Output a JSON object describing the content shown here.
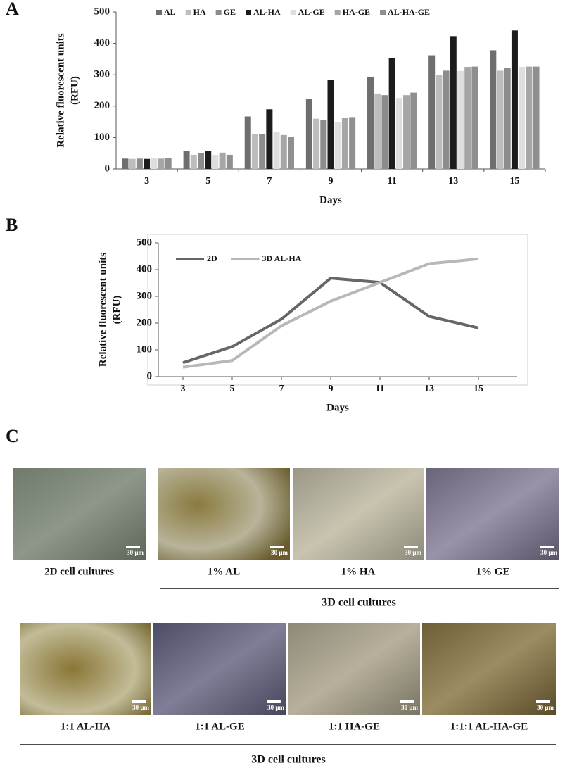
{
  "chart_data": [
    {
      "type": "bar",
      "label": "A",
      "ylabel": [
        "Relative fluorescent units",
        "(RFU)"
      ],
      "xlabel": "Days",
      "categories": [
        "3",
        "5",
        "7",
        "9",
        "11",
        "13",
        "15"
      ],
      "series": [
        {
          "name": "AL",
          "color": "#6e6e6e",
          "values": [
            33,
            58,
            167,
            222,
            292,
            362,
            378
          ]
        },
        {
          "name": "HA",
          "color": "#bdbdbd",
          "values": [
            32,
            45,
            110,
            160,
            240,
            300,
            313
          ]
        },
        {
          "name": "GE",
          "color": "#8c8c8c",
          "values": [
            33,
            50,
            112,
            157,
            235,
            313,
            322
          ]
        },
        {
          "name": "AL-HA",
          "color": "#1c1c1c",
          "values": [
            32,
            58,
            190,
            283,
            353,
            423,
            441
          ]
        },
        {
          "name": "AL-GE",
          "color": "#dedede",
          "values": [
            35,
            45,
            118,
            148,
            226,
            312,
            325
          ]
        },
        {
          "name": "HA-GE",
          "color": "#a6a6a6",
          "values": [
            33,
            52,
            108,
            163,
            235,
            325,
            326
          ]
        },
        {
          "name": "AL-HA-GE",
          "color": "#8f8f8f",
          "values": [
            34,
            45,
            103,
            165,
            243,
            326,
            326
          ]
        }
      ],
      "ylim": [
        0,
        500
      ],
      "yticks": [
        0,
        100,
        200,
        300,
        400,
        500
      ],
      "legend": "top"
    },
    {
      "type": "line",
      "label": "B",
      "ylabel": [
        "Relative fluorescent units",
        "(RFU)"
      ],
      "xlabel": "Days",
      "categories": [
        "3",
        "5",
        "7",
        "9",
        "11",
        "13",
        "15"
      ],
      "series": [
        {
          "name": "2D",
          "color": "#666666",
          "values": [
            52,
            112,
            215,
            368,
            352,
            225,
            182
          ]
        },
        {
          "name": "3D AL-HA",
          "color": "#b8b8b8",
          "values": [
            35,
            60,
            190,
            282,
            352,
            422,
            440
          ]
        }
      ],
      "ylim": [
        0,
        500
      ],
      "yticks": [
        0,
        100,
        200,
        300,
        400,
        500
      ],
      "legend": "top-left"
    }
  ],
  "panel_c": {
    "label": "C",
    "rows": [
      {
        "images": [
          {
            "caption": "2D cell cultures",
            "scale_bar": "30 µm"
          },
          {
            "caption": "1% AL",
            "scale_bar": "30 µm"
          },
          {
            "caption": "1% HA",
            "scale_bar": "30 µm"
          },
          {
            "caption": "1% GE",
            "scale_bar": "30 µm"
          }
        ],
        "group_label": "3D cell cultures"
      },
      {
        "images": [
          {
            "caption": "1:1 AL-HA",
            "scale_bar": "30 µm"
          },
          {
            "caption": "1:1 AL-GE",
            "scale_bar": "30 µm"
          },
          {
            "caption": "1:1 HA-GE",
            "scale_bar": "30 µm"
          },
          {
            "caption": "1:1:1 AL-HA-GE",
            "scale_bar": "30 µm"
          }
        ],
        "group_label": "3D cell cultures"
      }
    ]
  }
}
